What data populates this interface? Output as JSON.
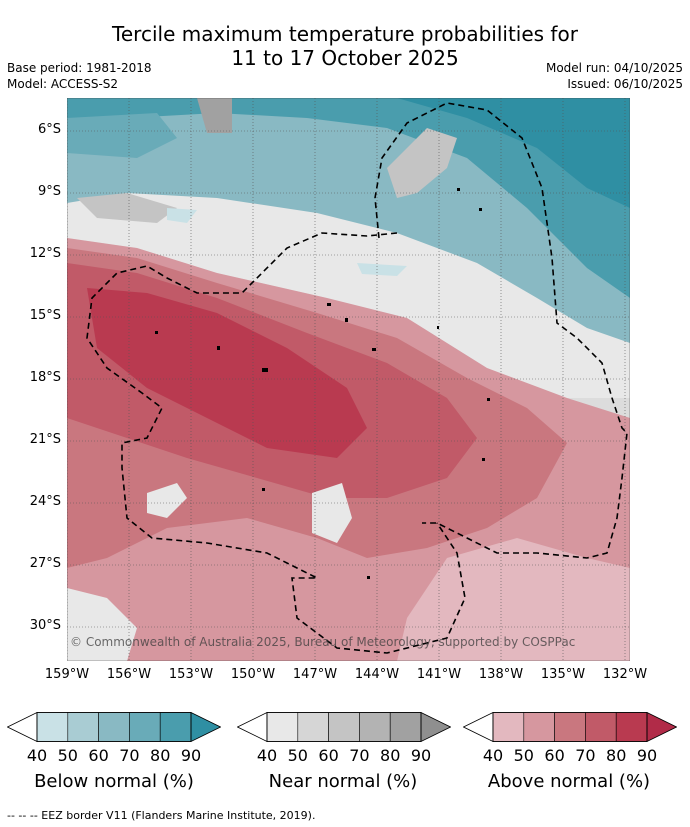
{
  "header": {
    "title_line1": "Tercile maximum temperature probabilities for",
    "title_line2": "11 to 17 October 2025",
    "base_period": "Base period: 1981-2018",
    "model": "Model: ACCESS-S2",
    "model_run": "Model run: 04/10/2025",
    "issued": "Issued: 06/10/2025"
  },
  "map": {
    "lat_labels": [
      "6°S",
      "9°S",
      "12°S",
      "15°S",
      "18°S",
      "21°S",
      "24°S",
      "27°S",
      "30°S"
    ],
    "lon_labels": [
      "159°W",
      "156°W",
      "153°W",
      "150°W",
      "147°W",
      "144°W",
      "141°W",
      "138°W",
      "135°W",
      "132°W"
    ],
    "copyright": "© Commonwealth of Australia 2025, Bureau of Meteorology, supported by COSPPac"
  },
  "legend": {
    "tick_values": [
      "40",
      "50",
      "60",
      "70",
      "80",
      "90"
    ],
    "below": {
      "title": "Below normal (%)",
      "colors": [
        "#c9e1e6",
        "#a9ccd3",
        "#89b9c3",
        "#69abb8",
        "#4a9dad",
        "#2f8fa3"
      ]
    },
    "near": {
      "title": "Near normal (%)",
      "colors": [
        "#e8e8e8",
        "#d6d6d6",
        "#c4c4c4",
        "#b3b3b3",
        "#a1a1a1",
        "#8f8f8f"
      ]
    },
    "above": {
      "title": "Above normal (%)",
      "colors": [
        "#e3b8bf",
        "#d6979f",
        "#c9777f",
        "#c15a68",
        "#b93a50",
        "#b12b48"
      ]
    }
  },
  "footnote": "--  --  -- EEZ border V11 (Flanders Marine Institute, 2019)."
}
